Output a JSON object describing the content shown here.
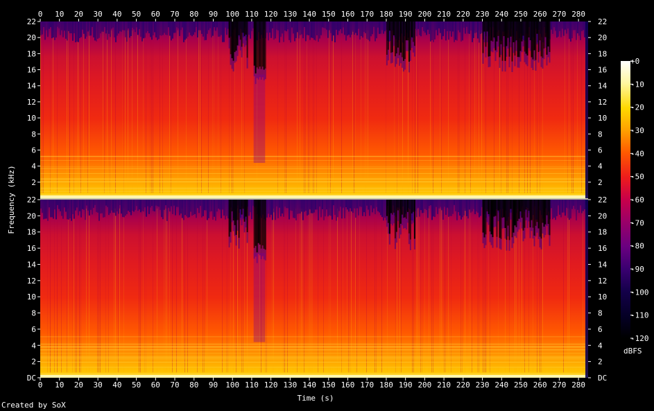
{
  "chart_data": {
    "type": "heatmap",
    "title": "",
    "xlabel": "Time (s)",
    "ylabel": "Frequency (kHz)",
    "xlim": [
      0,
      285
    ],
    "x_ticks": [
      0,
      10,
      20,
      30,
      40,
      50,
      60,
      70,
      80,
      90,
      100,
      110,
      120,
      130,
      140,
      150,
      160,
      170,
      180,
      190,
      200,
      210,
      220,
      230,
      240,
      250,
      260,
      270,
      280
    ],
    "y_ticks": [
      "DC",
      "2",
      "4",
      "6",
      "8",
      "10",
      "12",
      "14",
      "16",
      "18",
      "20",
      "22"
    ],
    "ylim_khz": [
      0,
      22
    ],
    "channels": 2,
    "colorbar": {
      "unit": "dBFS",
      "range": [
        -120,
        0
      ],
      "ticks": [
        "+0",
        "-10",
        "-20",
        "-30",
        "-40",
        "-50",
        "-60",
        "-70",
        "-80",
        "-90",
        "-100",
        "-110",
        "-120"
      ],
      "colors": [
        "#ffffff",
        "#fff7a0",
        "#ffd800",
        "#ffa000",
        "#ff5a00",
        "#ee1c1c",
        "#c8004a",
        "#9a0068",
        "#6a0080",
        "#3a0070",
        "#14004a",
        "#050026",
        "#000000"
      ]
    },
    "quiet_regions_s": [
      {
        "start": 98,
        "end": 108,
        "level": "partial"
      },
      {
        "start": 111,
        "end": 117,
        "level": "deep"
      },
      {
        "start": 180,
        "end": 195,
        "level": "partial"
      },
      {
        "start": 230,
        "end": 265,
        "level": "partial"
      }
    ],
    "signal_end_s": 285
  },
  "footer": {
    "credit": "Created by SoX"
  }
}
